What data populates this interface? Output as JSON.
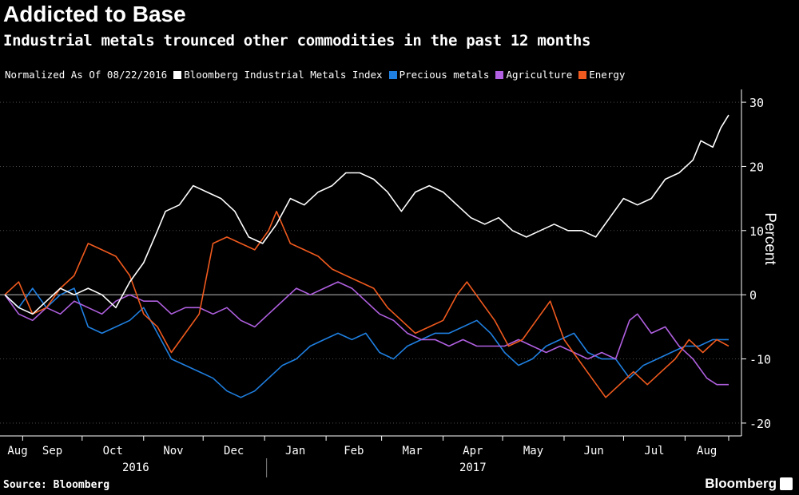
{
  "header": {
    "title": "Addicted to Base",
    "subtitle": "Industrial metals trounced other commodities in the past 12 months"
  },
  "legend_note": "Normalized As Of 08/22/2016",
  "footer": {
    "source": "Source: Bloomberg",
    "brand": "Bloomberg"
  },
  "colors": {
    "background": "#000000",
    "industrial_metals": "#ffffff",
    "precious_metals": "#1f7fe0",
    "agriculture": "#b060e0",
    "energy": "#f05a1e"
  },
  "chart_data": {
    "type": "line",
    "ylabel": "Percent",
    "ylim": [
      -22,
      32
    ],
    "yticks": [
      -20,
      -10,
      0,
      10,
      20,
      30
    ],
    "y_axis_side": "right",
    "zero_line": true,
    "grid": "horizontal dotted",
    "legend_position": "top",
    "x_start": "2016-08-22",
    "x_end": "2017-08-22",
    "month_ticks": [
      {
        "label": "Aug",
        "date": "2016-08-31"
      },
      {
        "label": "Sep",
        "date": "2016-09-30"
      },
      {
        "label": "Oct",
        "date": "2016-10-31"
      },
      {
        "label": "Nov",
        "date": "2016-11-30"
      },
      {
        "label": "Dec",
        "date": "2016-12-31"
      },
      {
        "label": "Jan",
        "date": "2017-01-31"
      },
      {
        "label": "Feb",
        "date": "2017-02-28"
      },
      {
        "label": "Mar",
        "date": "2017-03-31"
      },
      {
        "label": "Apr",
        "date": "2017-04-30"
      },
      {
        "label": "May",
        "date": "2017-05-31"
      },
      {
        "label": "Jun",
        "date": "2017-06-30"
      },
      {
        "label": "Jul",
        "date": "2017-07-31"
      },
      {
        "label": "Aug",
        "date": "2017-08-22"
      }
    ],
    "year_labels": [
      {
        "label": "2016",
        "date": "2016-10-27"
      },
      {
        "label": "2017",
        "date": "2017-04-15"
      }
    ],
    "year_divider_date": "2017-01-01",
    "series": [
      {
        "name": "Bloomberg Industrial Metals Index",
        "color": "#ffffff",
        "points": [
          [
            "2016-08-22",
            0
          ],
          [
            "2016-08-29",
            -2
          ],
          [
            "2016-09-05",
            -3
          ],
          [
            "2016-09-12",
            -1
          ],
          [
            "2016-09-19",
            1
          ],
          [
            "2016-09-26",
            0
          ],
          [
            "2016-10-03",
            1
          ],
          [
            "2016-10-10",
            0
          ],
          [
            "2016-10-17",
            -2
          ],
          [
            "2016-10-24",
            2
          ],
          [
            "2016-10-31",
            5
          ],
          [
            "2016-11-07",
            10
          ],
          [
            "2016-11-11",
            13
          ],
          [
            "2016-11-18",
            14
          ],
          [
            "2016-11-25",
            17
          ],
          [
            "2016-12-02",
            16
          ],
          [
            "2016-12-09",
            15
          ],
          [
            "2016-12-16",
            13
          ],
          [
            "2016-12-23",
            9
          ],
          [
            "2016-12-30",
            8
          ],
          [
            "2017-01-06",
            11
          ],
          [
            "2017-01-13",
            15
          ],
          [
            "2017-01-20",
            14
          ],
          [
            "2017-01-27",
            16
          ],
          [
            "2017-02-03",
            17
          ],
          [
            "2017-02-10",
            19
          ],
          [
            "2017-02-17",
            19
          ],
          [
            "2017-02-24",
            18
          ],
          [
            "2017-03-03",
            16
          ],
          [
            "2017-03-10",
            13
          ],
          [
            "2017-03-17",
            16
          ],
          [
            "2017-03-24",
            17
          ],
          [
            "2017-03-31",
            16
          ],
          [
            "2017-04-07",
            14
          ],
          [
            "2017-04-14",
            12
          ],
          [
            "2017-04-21",
            11
          ],
          [
            "2017-04-28",
            12
          ],
          [
            "2017-05-05",
            10
          ],
          [
            "2017-05-12",
            9
          ],
          [
            "2017-05-19",
            10
          ],
          [
            "2017-05-26",
            11
          ],
          [
            "2017-06-02",
            10
          ],
          [
            "2017-06-09",
            10
          ],
          [
            "2017-06-16",
            9
          ],
          [
            "2017-06-23",
            12
          ],
          [
            "2017-06-30",
            15
          ],
          [
            "2017-07-07",
            14
          ],
          [
            "2017-07-14",
            15
          ],
          [
            "2017-07-21",
            18
          ],
          [
            "2017-07-28",
            19
          ],
          [
            "2017-08-04",
            21
          ],
          [
            "2017-08-08",
            24
          ],
          [
            "2017-08-14",
            23
          ],
          [
            "2017-08-18",
            26
          ],
          [
            "2017-08-22",
            28
          ]
        ]
      },
      {
        "name": "Precious metals",
        "color": "#1f7fe0",
        "points": [
          [
            "2016-08-22",
            0
          ],
          [
            "2016-08-29",
            -2
          ],
          [
            "2016-09-05",
            1
          ],
          [
            "2016-09-12",
            -2
          ],
          [
            "2016-09-19",
            0
          ],
          [
            "2016-09-26",
            1
          ],
          [
            "2016-10-03",
            -5
          ],
          [
            "2016-10-10",
            -6
          ],
          [
            "2016-10-17",
            -5
          ],
          [
            "2016-10-24",
            -4
          ],
          [
            "2016-10-31",
            -2
          ],
          [
            "2016-11-07",
            -6
          ],
          [
            "2016-11-14",
            -10
          ],
          [
            "2016-11-21",
            -11
          ],
          [
            "2016-11-28",
            -12
          ],
          [
            "2016-12-05",
            -13
          ],
          [
            "2016-12-12",
            -15
          ],
          [
            "2016-12-19",
            -16
          ],
          [
            "2016-12-26",
            -15
          ],
          [
            "2017-01-02",
            -13
          ],
          [
            "2017-01-09",
            -11
          ],
          [
            "2017-01-16",
            -10
          ],
          [
            "2017-01-23",
            -8
          ],
          [
            "2017-01-30",
            -7
          ],
          [
            "2017-02-06",
            -6
          ],
          [
            "2017-02-13",
            -7
          ],
          [
            "2017-02-20",
            -6
          ],
          [
            "2017-02-27",
            -9
          ],
          [
            "2017-03-06",
            -10
          ],
          [
            "2017-03-13",
            -8
          ],
          [
            "2017-03-20",
            -7
          ],
          [
            "2017-03-27",
            -6
          ],
          [
            "2017-04-03",
            -6
          ],
          [
            "2017-04-10",
            -5
          ],
          [
            "2017-04-17",
            -4
          ],
          [
            "2017-04-24",
            -6
          ],
          [
            "2017-05-01",
            -9
          ],
          [
            "2017-05-08",
            -11
          ],
          [
            "2017-05-15",
            -10
          ],
          [
            "2017-05-22",
            -8
          ],
          [
            "2017-05-29",
            -7
          ],
          [
            "2017-06-05",
            -6
          ],
          [
            "2017-06-12",
            -9
          ],
          [
            "2017-06-19",
            -10
          ],
          [
            "2017-06-26",
            -10
          ],
          [
            "2017-07-03",
            -13
          ],
          [
            "2017-07-10",
            -11
          ],
          [
            "2017-07-17",
            -10
          ],
          [
            "2017-07-24",
            -9
          ],
          [
            "2017-07-31",
            -8
          ],
          [
            "2017-08-07",
            -8
          ],
          [
            "2017-08-14",
            -7
          ],
          [
            "2017-08-22",
            -7
          ]
        ]
      },
      {
        "name": "Agriculture",
        "color": "#b060e0",
        "points": [
          [
            "2016-08-22",
            0
          ],
          [
            "2016-08-29",
            -3
          ],
          [
            "2016-09-05",
            -4
          ],
          [
            "2016-09-12",
            -2
          ],
          [
            "2016-09-19",
            -3
          ],
          [
            "2016-09-26",
            -1
          ],
          [
            "2016-10-03",
            -2
          ],
          [
            "2016-10-10",
            -3
          ],
          [
            "2016-10-17",
            -1
          ],
          [
            "2016-10-24",
            0
          ],
          [
            "2016-10-31",
            -1
          ],
          [
            "2016-11-07",
            -1
          ],
          [
            "2016-11-14",
            -3
          ],
          [
            "2016-11-21",
            -2
          ],
          [
            "2016-11-28",
            -2
          ],
          [
            "2016-12-05",
            -3
          ],
          [
            "2016-12-12",
            -2
          ],
          [
            "2016-12-19",
            -4
          ],
          [
            "2016-12-26",
            -5
          ],
          [
            "2017-01-02",
            -3
          ],
          [
            "2017-01-09",
            -1
          ],
          [
            "2017-01-16",
            1
          ],
          [
            "2017-01-23",
            0
          ],
          [
            "2017-01-30",
            1
          ],
          [
            "2017-02-06",
            2
          ],
          [
            "2017-02-13",
            1
          ],
          [
            "2017-02-20",
            -1
          ],
          [
            "2017-02-27",
            -3
          ],
          [
            "2017-03-06",
            -4
          ],
          [
            "2017-03-13",
            -6
          ],
          [
            "2017-03-20",
            -7
          ],
          [
            "2017-03-27",
            -7
          ],
          [
            "2017-04-03",
            -8
          ],
          [
            "2017-04-10",
            -7
          ],
          [
            "2017-04-17",
            -8
          ],
          [
            "2017-04-24",
            -8
          ],
          [
            "2017-05-01",
            -8
          ],
          [
            "2017-05-08",
            -7
          ],
          [
            "2017-05-15",
            -8
          ],
          [
            "2017-05-22",
            -9
          ],
          [
            "2017-05-29",
            -8
          ],
          [
            "2017-06-05",
            -9
          ],
          [
            "2017-06-12",
            -10
          ],
          [
            "2017-06-19",
            -9
          ],
          [
            "2017-06-26",
            -10
          ],
          [
            "2017-07-03",
            -4
          ],
          [
            "2017-07-07",
            -3
          ],
          [
            "2017-07-14",
            -6
          ],
          [
            "2017-07-21",
            -5
          ],
          [
            "2017-07-28",
            -8
          ],
          [
            "2017-08-04",
            -10
          ],
          [
            "2017-08-11",
            -13
          ],
          [
            "2017-08-16",
            -14
          ],
          [
            "2017-08-22",
            -14
          ]
        ]
      },
      {
        "name": "Energy",
        "color": "#f05a1e",
        "points": [
          [
            "2016-08-22",
            0
          ],
          [
            "2016-08-29",
            2
          ],
          [
            "2016-09-05",
            -3
          ],
          [
            "2016-09-12",
            -2
          ],
          [
            "2016-09-19",
            1
          ],
          [
            "2016-09-26",
            3
          ],
          [
            "2016-10-03",
            8
          ],
          [
            "2016-10-10",
            7
          ],
          [
            "2016-10-17",
            6
          ],
          [
            "2016-10-24",
            3
          ],
          [
            "2016-10-31",
            -3
          ],
          [
            "2016-11-07",
            -5
          ],
          [
            "2016-11-14",
            -9
          ],
          [
            "2016-11-21",
            -6
          ],
          [
            "2016-11-28",
            -3
          ],
          [
            "2016-12-05",
            8
          ],
          [
            "2016-12-12",
            9
          ],
          [
            "2016-12-19",
            8
          ],
          [
            "2016-12-26",
            7
          ],
          [
            "2017-01-02",
            10
          ],
          [
            "2017-01-06",
            13
          ],
          [
            "2017-01-13",
            8
          ],
          [
            "2017-01-20",
            7
          ],
          [
            "2017-01-27",
            6
          ],
          [
            "2017-02-03",
            4
          ],
          [
            "2017-02-10",
            3
          ],
          [
            "2017-02-17",
            2
          ],
          [
            "2017-02-24",
            1
          ],
          [
            "2017-03-03",
            -2
          ],
          [
            "2017-03-10",
            -4
          ],
          [
            "2017-03-17",
            -6
          ],
          [
            "2017-03-24",
            -5
          ],
          [
            "2017-03-31",
            -4
          ],
          [
            "2017-04-07",
            0
          ],
          [
            "2017-04-12",
            2
          ],
          [
            "2017-04-19",
            -1
          ],
          [
            "2017-04-26",
            -4
          ],
          [
            "2017-05-03",
            -8
          ],
          [
            "2017-05-10",
            -7
          ],
          [
            "2017-05-17",
            -4
          ],
          [
            "2017-05-24",
            -1
          ],
          [
            "2017-05-31",
            -7
          ],
          [
            "2017-06-07",
            -10
          ],
          [
            "2017-06-14",
            -13
          ],
          [
            "2017-06-21",
            -16
          ],
          [
            "2017-06-28",
            -14
          ],
          [
            "2017-07-05",
            -12
          ],
          [
            "2017-07-12",
            -14
          ],
          [
            "2017-07-19",
            -12
          ],
          [
            "2017-07-26",
            -10
          ],
          [
            "2017-08-02",
            -7
          ],
          [
            "2017-08-09",
            -9
          ],
          [
            "2017-08-16",
            -7
          ],
          [
            "2017-08-22",
            -8
          ]
        ]
      }
    ]
  }
}
